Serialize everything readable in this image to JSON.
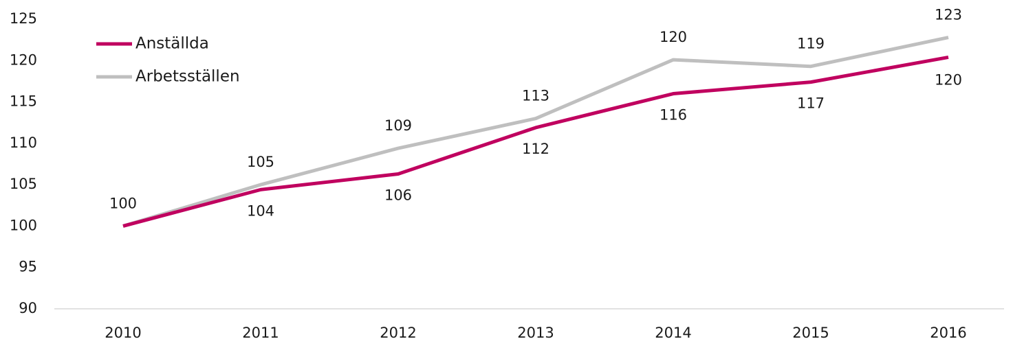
{
  "chart_data": {
    "type": "line",
    "categories": [
      "2010",
      "2011",
      "2012",
      "2013",
      "2014",
      "2015",
      "2016"
    ],
    "series": [
      {
        "name": "Anställda",
        "color": "#c0005f",
        "values": [
          100,
          104.4,
          106.3,
          111.9,
          116.0,
          117.4,
          120.4
        ],
        "value_labels": [
          null,
          "104",
          "106",
          "112",
          "116",
          "117",
          "120"
        ]
      },
      {
        "name": "Arbetsställen",
        "color": "#bfbfbf",
        "values": [
          100,
          105.0,
          109.4,
          113.0,
          120.1,
          119.3,
          122.8
        ],
        "value_labels": [
          "100",
          "105",
          "109",
          "113",
          "120",
          "119",
          "123"
        ]
      }
    ],
    "ylim": [
      90,
      125
    ],
    "yticks": [
      90,
      95,
      100,
      105,
      110,
      115,
      120,
      125
    ],
    "grid": false,
    "legend": "top-left"
  }
}
